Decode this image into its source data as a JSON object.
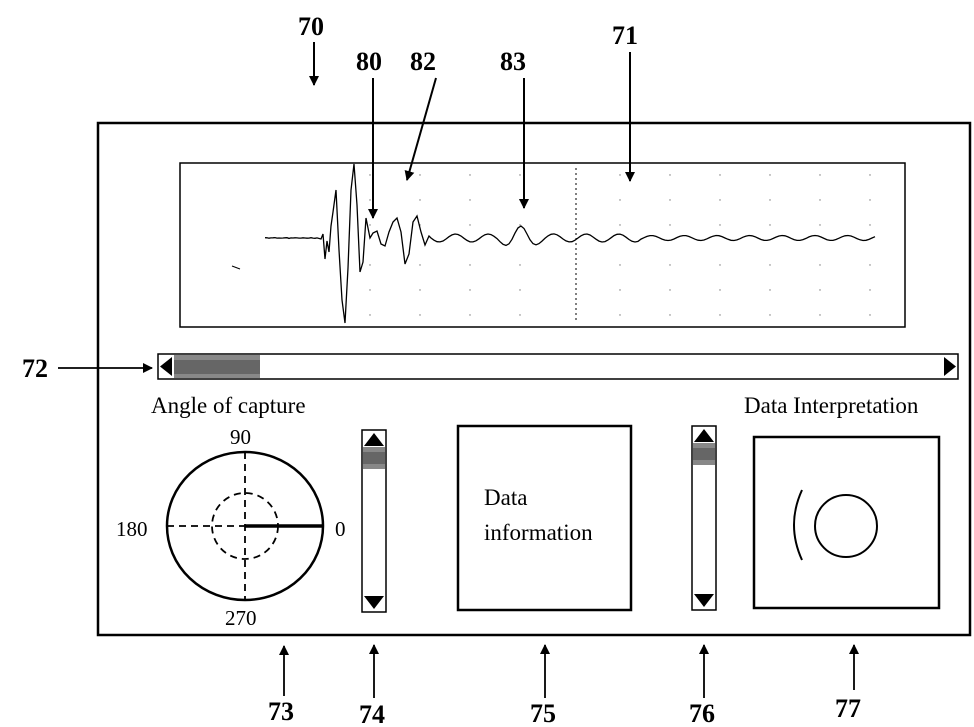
{
  "reference_numerals": {
    "r70": "70",
    "r80": "80",
    "r82": "82",
    "r83": "83",
    "r71": "71",
    "r72": "72",
    "r73": "73",
    "r74": "74",
    "r75": "75",
    "r76": "76",
    "r77": "77"
  },
  "angle_panel": {
    "title": "Angle of capture",
    "deg_90": "90",
    "deg_180": "180",
    "deg_0": "0",
    "deg_270": "270"
  },
  "info_panel": {
    "line1": "Data",
    "line2": "information"
  },
  "interp_panel": {
    "title": "Data Interpretation"
  },
  "colors": {
    "stroke": "#000000",
    "scroll_thumb": "#888888",
    "background": "#ffffff"
  }
}
